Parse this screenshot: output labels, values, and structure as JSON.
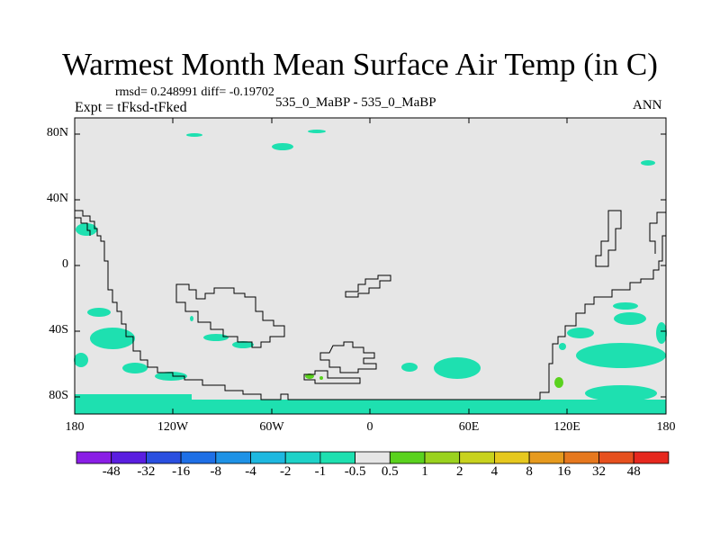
{
  "header": {
    "title": "Warmest Month Mean Surface Air Temp (in C)",
    "stats": "rmsd= 0.248991 diff= -0.19702",
    "experiment": "Expt = tFksd-tFked",
    "comparison": "535_0_MaBP - 535_0_MaBP",
    "period": "ANN"
  },
  "map": {
    "background_color": "#e6e6e6",
    "lat_ticks": [
      "80N",
      "40N",
      "0",
      "40S",
      "80S"
    ],
    "lon_ticks": [
      "180",
      "120W",
      "60W",
      "0",
      "60E",
      "120E",
      "180"
    ]
  },
  "colorbar": {
    "labels": [
      "-48",
      "-32",
      "-16",
      "-8",
      "-4",
      "-2",
      "-1",
      "-0.5",
      "0.5",
      "1",
      "2",
      "4",
      "8",
      "16",
      "32",
      "48"
    ],
    "colors": [
      "#8a1ee6",
      "#5a1ee0",
      "#2a4fe0",
      "#1e6fe6",
      "#1e92e6",
      "#1eb8e0",
      "#1ed2c8",
      "#1ee0b0",
      "#e6e6e6",
      "#5ad21e",
      "#9ad21e",
      "#c8d21e",
      "#e6c81e",
      "#e69a1e",
      "#e6781e",
      "#e6501e",
      "#e6281e"
    ]
  }
}
